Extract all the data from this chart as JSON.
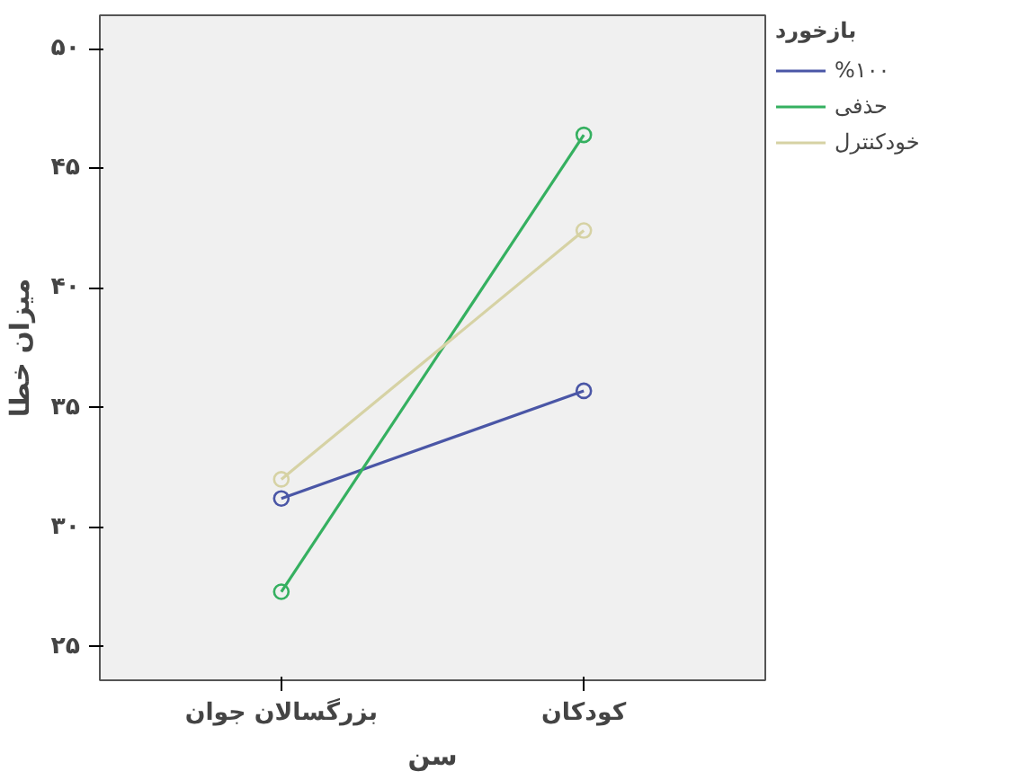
{
  "chart_data": {
    "type": "line",
    "xlabel": "سن",
    "ylabel": "میزان خطا",
    "legend_title": "بازخورد",
    "categories": [
      "بزرگسالان جوان",
      "کودکان"
    ],
    "series": [
      {
        "name": "%۱۰۰",
        "color": "#4a56a6",
        "values": [
          31.2,
          35.7
        ]
      },
      {
        "name": "حذفی",
        "color": "#35b060",
        "values": [
          27.3,
          46.4
        ]
      },
      {
        "name": "خودکنترل",
        "color": "#d6d2a4",
        "values": [
          32.0,
          42.4
        ]
      }
    ],
    "ylim": [
      23.6,
      51.4
    ],
    "yticks": [
      {
        "value": 25,
        "label": "۲۵"
      },
      {
        "value": 30,
        "label": "۳۰"
      },
      {
        "value": 35,
        "label": "۳۵"
      },
      {
        "value": 40,
        "label": "۴۰"
      },
      {
        "value": 45,
        "label": "۴۵"
      },
      {
        "value": 50,
        "label": "۵۰"
      }
    ],
    "marker": "circle",
    "line_style": "solid",
    "legend": "top right",
    "grid": false
  }
}
